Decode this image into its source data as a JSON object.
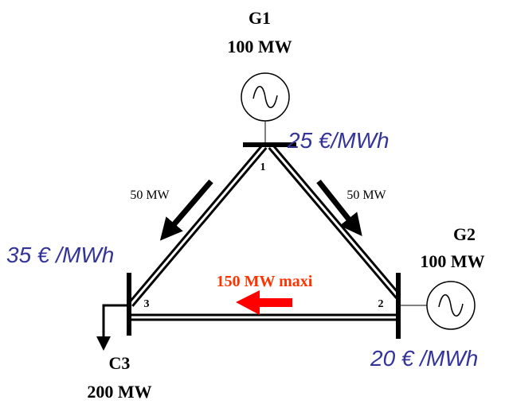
{
  "generators": [
    {
      "name": "G1",
      "capacity": "100 MW",
      "price": "25 €/MWh"
    },
    {
      "name": "G2",
      "capacity": "100 MW",
      "price": "20 € /MWh"
    }
  ],
  "buses": [
    {
      "label": "1"
    },
    {
      "label": "2"
    },
    {
      "label": "3"
    }
  ],
  "bus3_price": "35 € /MWh",
  "flows": {
    "line_1_3": "50 MW",
    "line_1_2": "50 MW",
    "line_2_3_limit": "150 MW maxi"
  },
  "load": {
    "name": "C3",
    "demand": "200 MW"
  }
}
